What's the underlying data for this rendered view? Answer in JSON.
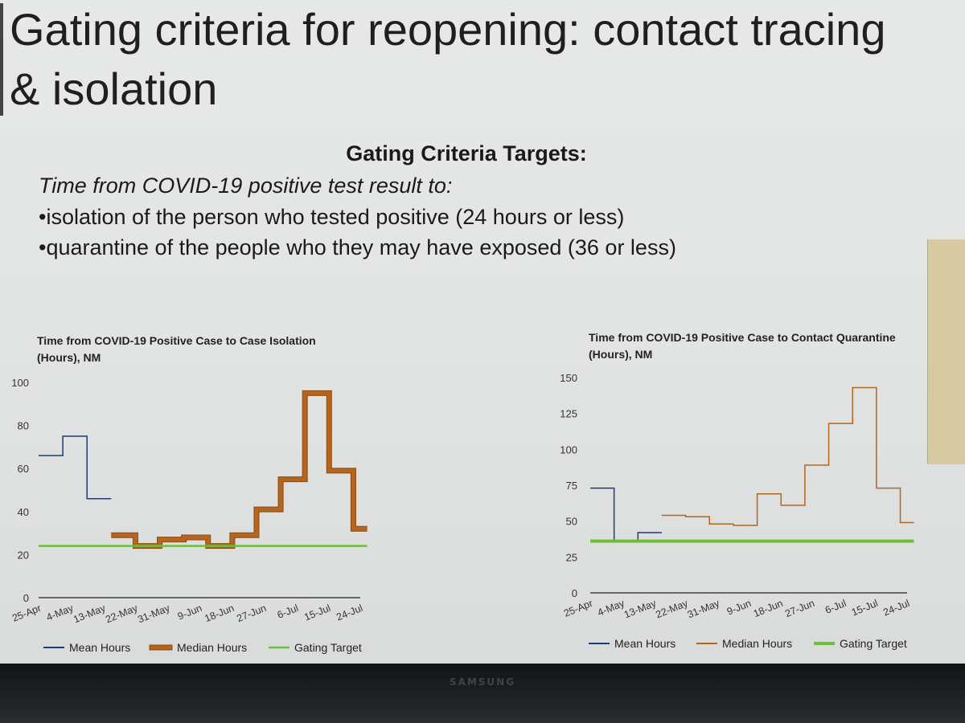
{
  "slide": {
    "title": "Gating criteria for reopening: contact tracing\n& isolation",
    "targets_heading": "Gating Criteria Targets:",
    "subheading": "Time from COVID-19 positive test result to:",
    "bullets": [
      "•isolation of the person who tested positive (24 hours or less)",
      "•quarantine of the people who they may have exposed (36 or less)"
    ]
  },
  "bezel": {
    "brand": "SAMSUNG"
  },
  "colors": {
    "mean": "#1f3b73",
    "median": "#b5651d",
    "gating": "#6dbf3b"
  },
  "chart_data": [
    {
      "type": "line",
      "title": "Time from COVID-19 Positive Case to Case Isolation (Hours), NM",
      "title_lines": [
        "Time from COVID-19 Positive Case to Case Isolation",
        "(Hours), NM"
      ],
      "ylim": [
        0,
        100
      ],
      "yticks": [
        0,
        20,
        40,
        60,
        80,
        100
      ],
      "ytick_labels": [
        "0",
        "20",
        "40",
        "60",
        "80",
        "100"
      ],
      "x_labels": [
        "25-Apr",
        "4-May",
        "13-May",
        "22-May",
        "31-May",
        "9-Jun",
        "18-Jun",
        "27-Jun",
        "6-Jul",
        "15-Jul",
        "24-Jul"
      ],
      "xlim": [
        0,
        93
      ],
      "step": true,
      "grid": false,
      "legend_position": "bottom",
      "series": [
        {
          "name": "Mean Hours",
          "color": "#1f3b73",
          "width": 1.5,
          "x": [
            0,
            7,
            14,
            21
          ],
          "y": [
            66,
            75,
            46,
            46
          ]
        },
        {
          "name": "Median Hours",
          "color": "#b5651d",
          "outline": "#8a4a12",
          "width": 5,
          "x": [
            21,
            28,
            35,
            42,
            49,
            56,
            63,
            70,
            77,
            84,
            91,
            95
          ],
          "y": [
            29,
            24,
            27,
            28,
            24,
            29,
            41,
            55,
            95,
            59,
            32,
            32
          ]
        },
        {
          "name": "Gating Target",
          "color": "#6dbf3b",
          "width": 2.5,
          "x": [
            0,
            95
          ],
          "y": [
            24,
            24
          ]
        }
      ]
    },
    {
      "type": "line",
      "title": "Time from COVID-19 Positive Case to Contact Quarantine (Hours), NM",
      "title_lines": [
        "Time from COVID-19 Positive Case to Contact Quarantine",
        "(Hours), NM"
      ],
      "ylim": [
        0,
        150
      ],
      "yticks": [
        0,
        25,
        50,
        75,
        100,
        125,
        150
      ],
      "ytick_labels": [
        "0",
        "25",
        "50",
        "75",
        "100",
        "125",
        "150"
      ],
      "x_labels": [
        "25-Apr",
        "4-May",
        "13-May",
        "22-May",
        "31-May",
        "9-Jun",
        "18-Jun",
        "27-Jun",
        "6-Jul",
        "15-Jul",
        "24-Jul"
      ],
      "xlim": [
        0,
        93
      ],
      "step": true,
      "grid": false,
      "legend_position": "bottom",
      "series": [
        {
          "name": "Mean Hours",
          "color": "#1f3b73",
          "width": 1.5,
          "x": [
            0,
            7,
            14,
            21
          ],
          "y": [
            73,
            36,
            42,
            42
          ]
        },
        {
          "name": "Median Hours",
          "color": "#b5651d",
          "width": 1.5,
          "x": [
            21,
            28,
            35,
            42,
            49,
            56,
            63,
            70,
            77,
            84,
            91,
            95
          ],
          "y": [
            54,
            53,
            48,
            47,
            69,
            61,
            89,
            118,
            143,
            73,
            49,
            49
          ]
        },
        {
          "name": "Gating Target",
          "color": "#6dbf3b",
          "width": 4,
          "x": [
            0,
            95
          ],
          "y": [
            36,
            36
          ]
        }
      ]
    }
  ]
}
